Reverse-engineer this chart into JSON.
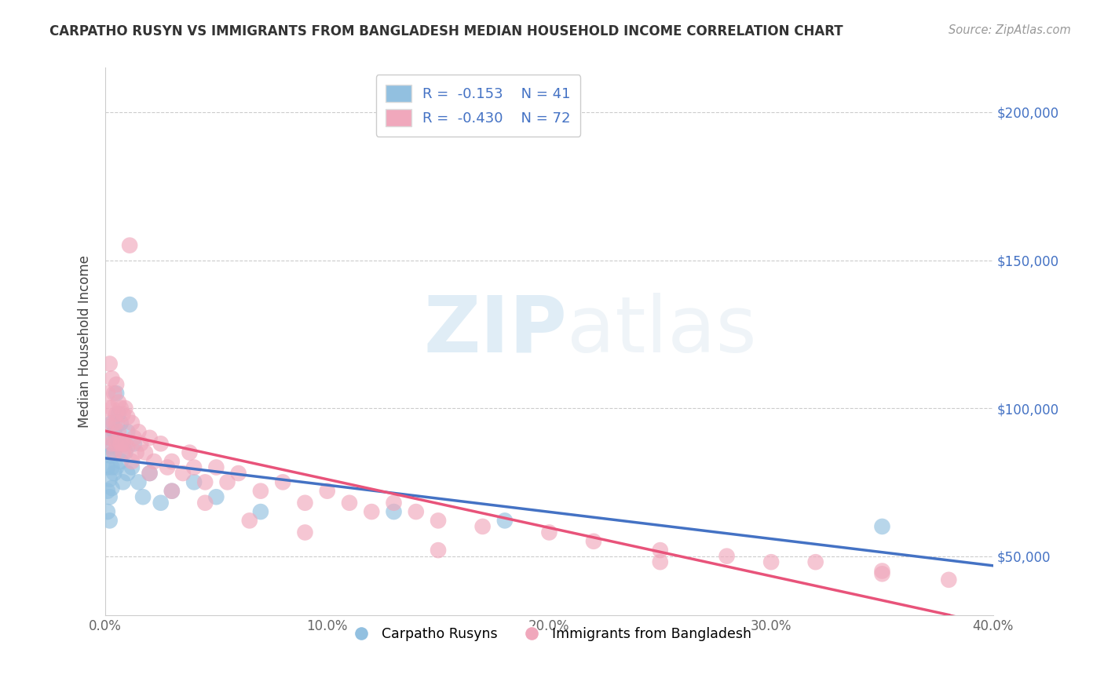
{
  "title": "CARPATHO RUSYN VS IMMIGRANTS FROM BANGLADESH MEDIAN HOUSEHOLD INCOME CORRELATION CHART",
  "source": "Source: ZipAtlas.com",
  "ylabel": "Median Household Income",
  "watermark_zip": "ZIP",
  "watermark_atlas": "atlas",
  "xlim": [
    0.0,
    0.4
  ],
  "ylim": [
    30000,
    215000
  ],
  "xtick_positions": [
    0.0,
    0.05,
    0.1,
    0.15,
    0.2,
    0.25,
    0.3,
    0.35,
    0.4
  ],
  "xtick_labels": [
    "0.0%",
    "",
    "10.0%",
    "",
    "20.0%",
    "",
    "30.0%",
    "",
    "40.0%"
  ],
  "ytick_values": [
    50000,
    100000,
    150000,
    200000
  ],
  "ytick_labels": [
    "$50,000",
    "$100,000",
    "$150,000",
    "$200,000"
  ],
  "blue_color": "#92C0E0",
  "pink_color": "#F0A8BC",
  "blue_line_color": "#4472C4",
  "pink_line_color": "#E8537A",
  "blue_scatter_x": [
    0.001,
    0.001,
    0.001,
    0.002,
    0.002,
    0.002,
    0.002,
    0.002,
    0.003,
    0.003,
    0.003,
    0.003,
    0.004,
    0.004,
    0.004,
    0.005,
    0.005,
    0.005,
    0.006,
    0.006,
    0.007,
    0.007,
    0.008,
    0.008,
    0.009,
    0.01,
    0.011,
    0.012,
    0.013,
    0.015,
    0.017,
    0.02,
    0.025,
    0.03,
    0.04,
    0.05,
    0.07,
    0.13,
    0.18,
    0.35,
    0.01
  ],
  "blue_scatter_y": [
    80000,
    72000,
    65000,
    90000,
    84000,
    76000,
    70000,
    62000,
    95000,
    87000,
    80000,
    73000,
    92000,
    85000,
    78000,
    105000,
    90000,
    80000,
    98000,
    88000,
    95000,
    82000,
    88000,
    75000,
    85000,
    92000,
    135000,
    80000,
    88000,
    75000,
    70000,
    78000,
    68000,
    72000,
    75000,
    70000,
    65000,
    65000,
    62000,
    60000,
    78000
  ],
  "pink_scatter_x": [
    0.001,
    0.001,
    0.002,
    0.002,
    0.002,
    0.003,
    0.003,
    0.003,
    0.004,
    0.004,
    0.004,
    0.005,
    0.005,
    0.005,
    0.006,
    0.006,
    0.007,
    0.007,
    0.008,
    0.008,
    0.009,
    0.009,
    0.01,
    0.01,
    0.011,
    0.012,
    0.013,
    0.014,
    0.015,
    0.016,
    0.018,
    0.02,
    0.022,
    0.025,
    0.028,
    0.03,
    0.035,
    0.038,
    0.04,
    0.045,
    0.05,
    0.055,
    0.06,
    0.07,
    0.08,
    0.09,
    0.1,
    0.11,
    0.12,
    0.13,
    0.14,
    0.15,
    0.17,
    0.2,
    0.22,
    0.25,
    0.28,
    0.3,
    0.32,
    0.35,
    0.38,
    0.005,
    0.008,
    0.012,
    0.02,
    0.03,
    0.045,
    0.065,
    0.09,
    0.15,
    0.25,
    0.35
  ],
  "pink_scatter_y": [
    105000,
    95000,
    115000,
    100000,
    90000,
    110000,
    100000,
    88000,
    105000,
    95000,
    85000,
    108000,
    98000,
    88000,
    102000,
    92000,
    100000,
    88000,
    98000,
    85000,
    100000,
    88000,
    97000,
    87000,
    155000,
    95000,
    90000,
    85000,
    92000,
    88000,
    85000,
    90000,
    82000,
    88000,
    80000,
    82000,
    78000,
    85000,
    80000,
    75000,
    80000,
    75000,
    78000,
    72000,
    75000,
    68000,
    72000,
    68000,
    65000,
    68000,
    65000,
    62000,
    60000,
    58000,
    55000,
    52000,
    50000,
    48000,
    48000,
    45000,
    42000,
    95000,
    88000,
    82000,
    78000,
    72000,
    68000,
    62000,
    58000,
    52000,
    48000,
    44000
  ]
}
